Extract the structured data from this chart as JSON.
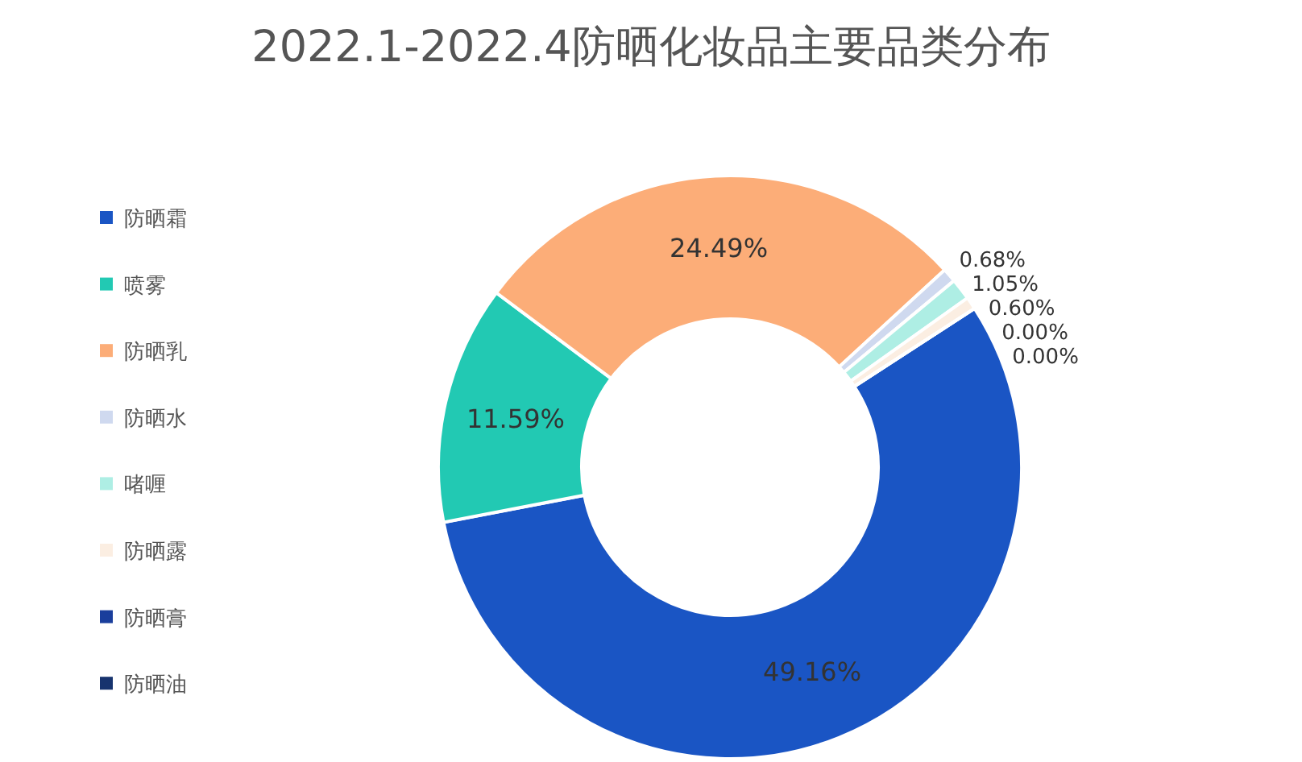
{
  "chart_data": {
    "type": "donut",
    "title": "2022.1-2022.4防晒化妆品主要品类分布",
    "categories": [
      "防晒霜",
      "喷雾",
      "防晒乳",
      "防晒水",
      "啫喱",
      "防晒露",
      "防晒膏",
      "防晒油"
    ],
    "values": [
      49.16,
      11.59,
      24.49,
      0.68,
      1.05,
      0.6,
      0.0,
      0.0
    ],
    "colors": [
      "#1a55c4",
      "#22c9b3",
      "#fcad78",
      "#cfd9ef",
      "#aeeee4",
      "#fbeee2",
      "#1a3e9c",
      "#17336e"
    ],
    "value_labels": [
      "49.16%",
      "11.59%",
      "24.49%",
      "0.68%",
      "1.05%",
      "0.60%",
      "0.00%",
      "0.00%"
    ],
    "legend": "left"
  }
}
